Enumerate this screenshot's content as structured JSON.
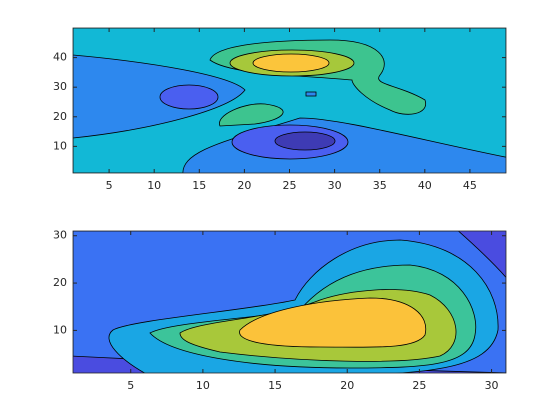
{
  "chart_data": [
    {
      "type": "contour",
      "xlim": [
        1,
        49
      ],
      "ylim": [
        1,
        50
      ],
      "xticks": [
        5,
        10,
        15,
        20,
        25,
        30,
        35,
        40,
        45
      ],
      "yticks": [
        10,
        20,
        30,
        40
      ],
      "colors": [
        "#3e3bb4",
        "#4a5ff0",
        "#2d88ee",
        "#12b8d6",
        "#3dc48f",
        "#a6c83b",
        "#fbc53b"
      ]
    },
    {
      "type": "contour",
      "xlim": [
        1,
        31
      ],
      "ylim": [
        1,
        31
      ],
      "xticks": [
        5,
        10,
        15,
        20,
        25,
        30
      ],
      "yticks": [
        10,
        20,
        30
      ],
      "colors": [
        "#4a4ce0",
        "#3a72f3",
        "#1aa6e4",
        "#3cc49a",
        "#a8c83a",
        "#fbc23a"
      ]
    }
  ]
}
